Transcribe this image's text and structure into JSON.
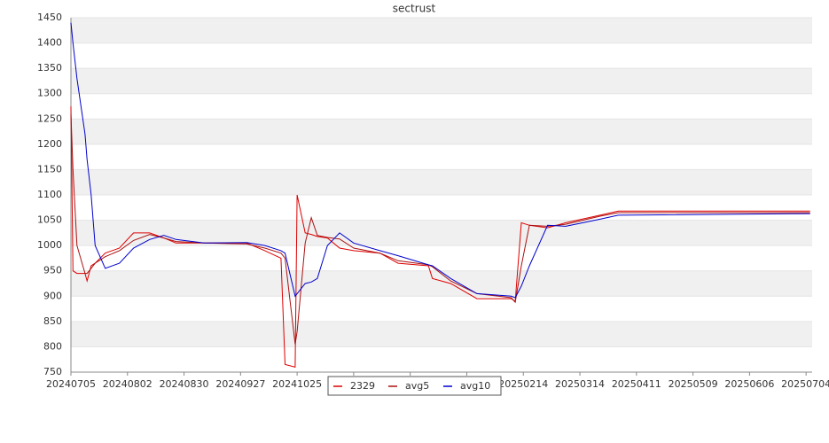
{
  "chart_data": {
    "type": "line",
    "title": "sectrust",
    "x": [
      "20240705",
      "20240706",
      "20240708",
      "20240712",
      "20240713",
      "20240715",
      "20240717",
      "20240722",
      "20240729",
      "20240805",
      "20240813",
      "20240820",
      "20240826",
      "20240909",
      "20240930",
      "20241009",
      "20241017",
      "20241019",
      "20241024",
      "20241025",
      "20241029",
      "20241101",
      "20241104",
      "20241109",
      "20241115",
      "20241122",
      "20241205",
      "20241214",
      "20241229",
      "20241231",
      "20250109",
      "20250122",
      "20250208",
      "20250210",
      "20250213",
      "20250217",
      "20250226",
      "20250307",
      "20250324",
      "20250402",
      "20250706"
    ],
    "series": [
      {
        "name": "2329",
        "color": "#dd0000",
        "values": [
          1275,
          950,
          945,
          945,
          930,
          960,
          965,
          985,
          995,
          1025,
          1025,
          1015,
          1005,
          1005,
          1005,
          990,
          975,
          765,
          760,
          1100,
          1025,
          1022,
          1018,
          1015,
          995,
          990,
          985,
          965,
          960,
          935,
          925,
          895,
          895,
          890,
          1045,
          1040,
          1035,
          1045,
          1060,
          1068,
          1068
        ]
      },
      {
        "name": "avg5",
        "color": "#aa1111",
        "values": [
          1260,
          1150,
          1000,
          945,
          945,
          955,
          965,
          978,
          990,
          1010,
          1022,
          1015,
          1008,
          1005,
          1003,
          995,
          985,
          975,
          805,
          830,
          1005,
          1055,
          1020,
          1016,
          1013,
          995,
          985,
          970,
          962,
          958,
          930,
          905,
          897,
          888,
          960,
          1040,
          1038,
          1042,
          1058,
          1065,
          1065
        ]
      },
      {
        "name": "avg10",
        "color": "#0000cc",
        "values": [
          1440,
          1400,
          1330,
          1220,
          1170,
          1100,
          1000,
          955,
          965,
          995,
          1012,
          1020,
          1012,
          1005,
          1006,
          1000,
          990,
          985,
          900,
          905,
          925,
          928,
          935,
          1000,
          1025,
          1005,
          990,
          980,
          962,
          960,
          935,
          905,
          900,
          897,
          920,
          960,
          1040,
          1038,
          1052,
          1060,
          1063
        ]
      }
    ],
    "xlim": [
      "20240705",
      "20250707"
    ],
    "xticks": [
      "20240705",
      "20240802",
      "20240830",
      "20240927",
      "20241025",
      "20241122",
      "20241220",
      "20250117",
      "20250214",
      "20250314",
      "20250411",
      "20250509",
      "20250606",
      "20250704"
    ],
    "ylim": [
      750,
      1450
    ],
    "yticks": [
      750,
      800,
      850,
      900,
      950,
      1000,
      1050,
      1100,
      1150,
      1200,
      1250,
      1300,
      1350,
      1400,
      1450
    ],
    "grid": true
  }
}
